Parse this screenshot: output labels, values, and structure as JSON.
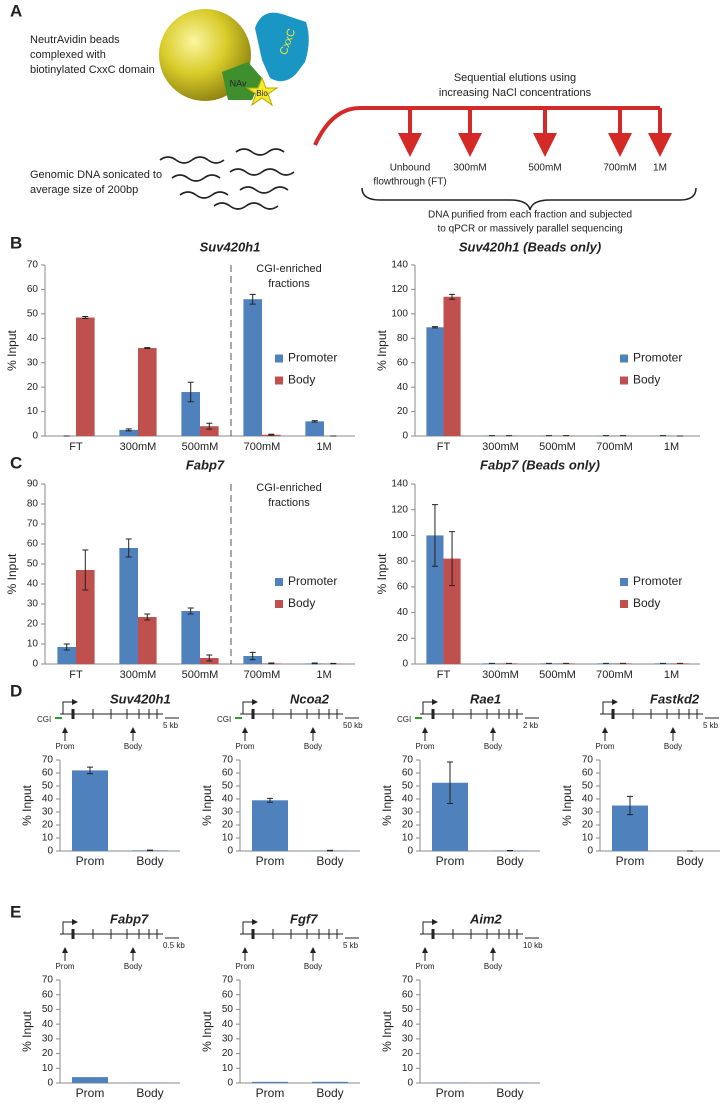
{
  "panel_labels": [
    "A",
    "B",
    "C",
    "D",
    "E"
  ],
  "panel_a": {
    "beads_label": [
      "NeutrAvidin beads",
      "complexed with",
      "biotinylated CxxC domain"
    ],
    "nav": "NAv",
    "bio": "Bio",
    "cxxc": "CxxC",
    "dna_label": [
      "Genomic DNA sonicated to",
      "average size of 200bp"
    ],
    "elution_label": [
      "Sequential elutions using",
      "increasing NaCl concentrations"
    ],
    "fractions": [
      [
        "Unbound",
        "flowthrough (FT)"
      ],
      [
        "300mM"
      ],
      [
        "500mM"
      ],
      [
        "700mM"
      ],
      [
        "1M"
      ]
    ],
    "footer": [
      "DNA purified from each fraction and subjected",
      "to qPCR or massively parallel sequencing"
    ]
  },
  "chart_data": [
    {
      "type": "bar",
      "title": "Suv420h1",
      "ylabel": "% Input",
      "categories": [
        "FT",
        "300mM",
        "500mM",
        "700mM",
        "1M"
      ],
      "series": [
        {
          "name": "Promoter",
          "color": "#4f81bd",
          "values": [
            0,
            2.5,
            18,
            56,
            6
          ],
          "errors": [
            0,
            0.4,
            4,
            2,
            0.3
          ]
        },
        {
          "name": "Body",
          "color": "#c0504d",
          "values": [
            48.5,
            36,
            4,
            0.5,
            0
          ],
          "errors": [
            0.4,
            0.2,
            1.2,
            0.2,
            0
          ]
        }
      ],
      "ylim": [
        0,
        70
      ],
      "yticks": [
        0,
        10,
        20,
        30,
        40,
        50,
        60,
        70
      ],
      "legend": "right",
      "annotation": [
        "CGI-enriched",
        "fractions"
      ]
    },
    {
      "type": "bar",
      "title": "Suv420h1 (Beads only)",
      "ylabel": "% Input",
      "categories": [
        "FT",
        "300mM",
        "500mM",
        "700mM",
        "1M"
      ],
      "series": [
        {
          "name": "Promoter",
          "color": "#4f81bd",
          "values": [
            89,
            0.3,
            0.3,
            0.3,
            0.3
          ],
          "errors": [
            0.5,
            0,
            0,
            0,
            0
          ]
        },
        {
          "name": "Body",
          "color": "#c0504d",
          "values": [
            114,
            0.3,
            0.3,
            0.3,
            0
          ],
          "errors": [
            2,
            0,
            0,
            0,
            0
          ]
        }
      ],
      "ylim": [
        0,
        140
      ],
      "yticks": [
        0,
        20,
        40,
        60,
        80,
        100,
        120,
        140
      ],
      "legend": "right"
    },
    {
      "type": "bar",
      "title": "Fabp7",
      "ylabel": "% Input",
      "categories": [
        "FT",
        "300mM",
        "500mM",
        "700mM",
        "1M"
      ],
      "series": [
        {
          "name": "Promoter",
          "color": "#4f81bd",
          "values": [
            8.5,
            58,
            26.5,
            4,
            0.3
          ],
          "errors": [
            1.5,
            4.5,
            1.5,
            1.8,
            0.2
          ]
        },
        {
          "name": "Body",
          "color": "#c0504d",
          "values": [
            47,
            23.5,
            3,
            0.3,
            0.2
          ],
          "errors": [
            10,
            1.5,
            1.5,
            0.2,
            0.1
          ]
        }
      ],
      "ylim": [
        0,
        90
      ],
      "yticks": [
        0,
        10,
        20,
        30,
        40,
        50,
        60,
        70,
        80,
        90
      ],
      "legend": "right",
      "annotation": [
        "CGI-enriched",
        "fractions"
      ]
    },
    {
      "type": "bar",
      "title": "Fabp7 (Beads only)",
      "ylabel": "% Input",
      "categories": [
        "FT",
        "300mM",
        "500mM",
        "700mM",
        "1M"
      ],
      "series": [
        {
          "name": "Promoter",
          "color": "#4f81bd",
          "values": [
            100,
            0.5,
            0.5,
            0.5,
            0.5
          ],
          "errors": [
            24,
            0,
            0,
            0,
            0
          ]
        },
        {
          "name": "Body",
          "color": "#c0504d",
          "values": [
            82,
            0.5,
            0.5,
            0.5,
            0.5
          ],
          "errors": [
            21,
            0,
            0,
            0,
            0
          ]
        }
      ],
      "ylim": [
        0,
        140
      ],
      "yticks": [
        0,
        20,
        40,
        60,
        80,
        100,
        120,
        140
      ],
      "legend": "right"
    },
    {
      "type": "bar",
      "title": "Suv420h1",
      "ylabel": "% Input",
      "categories": [
        "Prom",
        "Body"
      ],
      "color": "#4f81bd",
      "values": [
        62,
        0.5
      ],
      "errors": [
        2.5,
        0.2
      ],
      "ylim": [
        0,
        70
      ],
      "yticks": [
        0,
        10,
        20,
        30,
        40,
        50,
        60,
        70
      ],
      "gene_map": {
        "cgi": "CGI",
        "prom": "Prom",
        "body": "Body",
        "scale": "5 kb"
      }
    },
    {
      "type": "bar",
      "title": "Ncoa2",
      "ylabel": "% Input",
      "categories": [
        "Prom",
        "Body"
      ],
      "color": "#4f81bd",
      "values": [
        39,
        0.3
      ],
      "errors": [
        1.5,
        0.2
      ],
      "ylim": [
        0,
        70
      ],
      "yticks": [
        0,
        10,
        20,
        30,
        40,
        50,
        60,
        70
      ],
      "gene_map": {
        "cgi": "CGI",
        "prom": "Prom",
        "body": "Body",
        "scale": "50 kb"
      }
    },
    {
      "type": "bar",
      "title": "Rae1",
      "ylabel": "% Input",
      "categories": [
        "Prom",
        "Body"
      ],
      "color": "#4f81bd",
      "values": [
        52.5,
        0.3
      ],
      "errors": [
        16,
        0.1
      ],
      "ylim": [
        0,
        70
      ],
      "yticks": [
        0,
        10,
        20,
        30,
        40,
        50,
        60,
        70
      ],
      "gene_map": {
        "cgi": "CGI",
        "prom": "Prom",
        "body": "Body",
        "scale": "2 kb"
      }
    },
    {
      "type": "bar",
      "title": "Fastkd2",
      "ylabel": "% Input",
      "categories": [
        "Prom",
        "Body"
      ],
      "color": "#4f81bd",
      "values": [
        35,
        0
      ],
      "errors": [
        7,
        0
      ],
      "ylim": [
        0,
        70
      ],
      "yticks": [
        0,
        10,
        20,
        30,
        40,
        50,
        60,
        70
      ],
      "gene_map": {
        "prom": "Prom",
        "body": "Body",
        "scale": "5 kb"
      }
    },
    {
      "type": "bar",
      "title": "Fabp7",
      "ylabel": "% Input",
      "categories": [
        "Prom",
        "Body"
      ],
      "color": "#4f81bd",
      "values": [
        4,
        0.3
      ],
      "ylim": [
        0,
        70
      ],
      "yticks": [
        0,
        10,
        20,
        30,
        40,
        50,
        60,
        70
      ],
      "gene_map": {
        "prom": "Prom",
        "body": "Body",
        "scale": "0.5 kb"
      }
    },
    {
      "type": "bar",
      "title": "Fgf7",
      "ylabel": "% Input",
      "categories": [
        "Prom",
        "Body"
      ],
      "color": "#4f81bd",
      "values": [
        0.8,
        0.8
      ],
      "ylim": [
        0,
        70
      ],
      "yticks": [
        0,
        10,
        20,
        30,
        40,
        50,
        60,
        70
      ],
      "gene_map": {
        "prom": "Prom",
        "body": "Body",
        "scale": "5 kb"
      }
    },
    {
      "type": "bar",
      "title": "Aim2",
      "ylabel": "% Input",
      "categories": [
        "Prom",
        "Body"
      ],
      "color": "#4f81bd",
      "values": [
        0.3,
        0.3
      ],
      "ylim": [
        0,
        70
      ],
      "yticks": [
        0,
        10,
        20,
        30,
        40,
        50,
        60,
        70
      ],
      "gene_map": {
        "prom": "Prom",
        "body": "Body",
        "scale": "10 kb"
      }
    }
  ]
}
